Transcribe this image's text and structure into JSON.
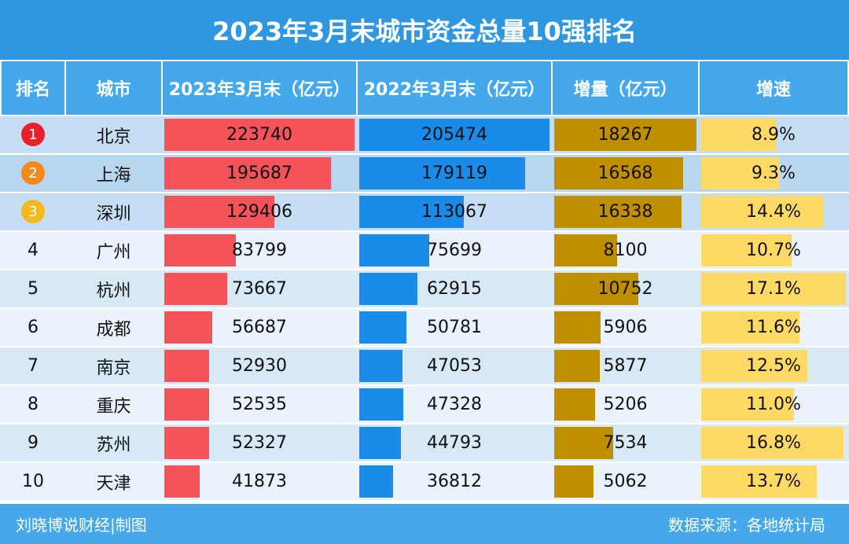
{
  "title": "2023年3月末城市资金总量10强排名",
  "table": {
    "headers": [
      "排名",
      "城市",
      "2023年3月末（亿元）",
      "2022年3月末（亿元）",
      "增量（亿元）",
      "增速"
    ],
    "rows": [
      [
        1,
        "北京",
        223740,
        205474,
        18267,
        {
          "value": 8.9,
          "label": "8.9%"
        }
      ],
      [
        2,
        "上海",
        195687,
        179119,
        16568,
        {
          "value": 9.3,
          "label": "9.3%"
        }
      ],
      [
        3,
        "深圳",
        129406,
        113067,
        16338,
        {
          "value": 14.4,
          "label": "14.4%"
        }
      ],
      [
        4,
        "广州",
        83799,
        75699,
        8100,
        {
          "value": 10.7,
          "label": "10.7%"
        }
      ],
      [
        5,
        "杭州",
        73667,
        62915,
        10752,
        {
          "value": 17.1,
          "label": "17.1%"
        }
      ],
      [
        6,
        "成都",
        56687,
        50781,
        5906,
        {
          "value": 11.6,
          "label": "11.6%"
        }
      ],
      [
        7,
        "南京",
        52930,
        47053,
        5877,
        {
          "value": 12.5,
          "label": "12.5%"
        }
      ],
      [
        8,
        "重庆",
        52535,
        47328,
        5206,
        {
          "value": 11.0,
          "label": "11.0%"
        }
      ],
      [
        9,
        "苏州",
        52327,
        44793,
        7534,
        {
          "value": 16.8,
          "label": "16.8%"
        }
      ],
      [
        10,
        "天津",
        41873,
        36812,
        5062,
        {
          "value": 13.7,
          "label": "13.7%"
        }
      ]
    ]
  },
  "footer": {
    "left": "刘晓博说财经|制图",
    "right": "数据来源：各地统计局"
  }
}
